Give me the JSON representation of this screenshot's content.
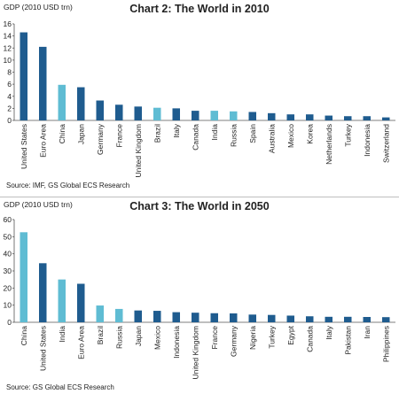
{
  "chart_data": [
    {
      "type": "bar",
      "title": "Chart 2: The World in 2010",
      "ylabel": "GDP (2010 USD trn)",
      "source": "Source: IMF, GS Global ECS Research",
      "ylim": [
        0,
        16
      ],
      "yticks": [
        0,
        2,
        4,
        6,
        8,
        10,
        12,
        14,
        16
      ],
      "grid": false,
      "legend": "none",
      "colors": {
        "default": "#1f5c8f",
        "highlight": "#5fbcd3"
      },
      "categories": [
        "United States",
        "Euro Area",
        "China",
        "Japan",
        "Germany",
        "France",
        "United Kingdom",
        "Brazil",
        "Italy",
        "Canada",
        "India",
        "Russia",
        "Spain",
        "Australia",
        "Mexico",
        "Korea",
        "Netherlands",
        "Turkey",
        "Indonesia",
        "Switzerland"
      ],
      "values": [
        14.6,
        12.2,
        5.9,
        5.5,
        3.3,
        2.6,
        2.3,
        2.1,
        2.0,
        1.6,
        1.6,
        1.5,
        1.4,
        1.2,
        1.0,
        1.0,
        0.8,
        0.7,
        0.7,
        0.5
      ],
      "highlight": [
        false,
        false,
        true,
        false,
        false,
        false,
        false,
        true,
        false,
        false,
        true,
        true,
        false,
        false,
        false,
        false,
        false,
        false,
        false,
        false
      ]
    },
    {
      "type": "bar",
      "title": "Chart 3: The World in 2050",
      "ylabel": "GDP (2010 USD trn)",
      "source": "Source: GS Global ECS Research",
      "ylim": [
        0,
        60
      ],
      "yticks": [
        0,
        10,
        20,
        30,
        40,
        50,
        60
      ],
      "grid": false,
      "legend": "none",
      "colors": {
        "default": "#1f5c8f",
        "highlight": "#5fbcd3"
      },
      "categories": [
        "China",
        "United States",
        "India",
        "Euro Area",
        "Brazil",
        "Russia",
        "Japan",
        "Mexico",
        "Indonesia",
        "United Kingdom",
        "France",
        "Germany",
        "Nigeria",
        "Turkey",
        "Egypt",
        "Canada",
        "Italy",
        "Pakistan",
        "Iran",
        "Philippines"
      ],
      "values": [
        52.6,
        34.5,
        25.0,
        22.5,
        9.8,
        7.8,
        6.9,
        6.7,
        5.9,
        5.6,
        5.3,
        5.2,
        4.5,
        4.3,
        3.9,
        3.5,
        3.2,
        3.2,
        3.1,
        3.0
      ],
      "highlight": [
        true,
        false,
        true,
        false,
        true,
        true,
        false,
        false,
        false,
        false,
        false,
        false,
        false,
        false,
        false,
        false,
        false,
        false,
        false,
        false
      ]
    }
  ]
}
